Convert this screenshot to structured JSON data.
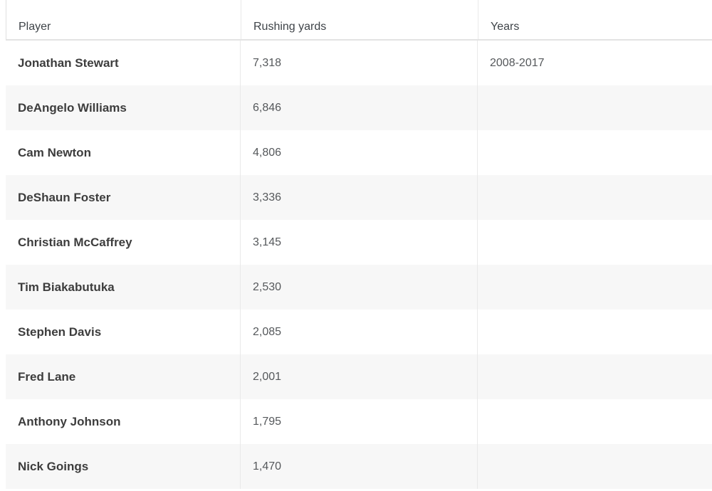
{
  "table": {
    "columns": [
      {
        "label": "Player"
      },
      {
        "label": "Rushing yards"
      },
      {
        "label": "Years"
      }
    ],
    "rows": [
      {
        "player": "Jonathan Stewart",
        "rushing_yards": "7,318",
        "years": "2008-2017"
      },
      {
        "player": "DeAngelo Williams",
        "rushing_yards": "6,846",
        "years": ""
      },
      {
        "player": "Cam Newton",
        "rushing_yards": "4,806",
        "years": ""
      },
      {
        "player": "DeShaun Foster",
        "rushing_yards": "3,336",
        "years": ""
      },
      {
        "player": "Christian McCaffrey",
        "rushing_yards": "3,145",
        "years": ""
      },
      {
        "player": "Tim Biakabutuka",
        "rushing_yards": "2,530",
        "years": ""
      },
      {
        "player": "Stephen Davis",
        "rushing_yards": "2,085",
        "years": ""
      },
      {
        "player": "Fred Lane",
        "rushing_yards": "2,001",
        "years": ""
      },
      {
        "player": "Anthony Johnson",
        "rushing_yards": "1,795",
        "years": ""
      },
      {
        "player": "Nick Goings",
        "rushing_yards": "1,470",
        "years": ""
      }
    ],
    "colors": {
      "background": "#ffffff",
      "stripe": "#f7f7f7",
      "divider": "#e9e9e9",
      "header_border": "#e3e3e3",
      "header_text": "#3e4348",
      "name_text": "#3d3d3d",
      "value_text": "#55585b"
    }
  },
  "chart_data": {
    "type": "table",
    "title": "",
    "columns": [
      "Player",
      "Rushing yards",
      "Years"
    ],
    "categories": [
      "Jonathan Stewart",
      "DeAngelo Williams",
      "Cam Newton",
      "DeShaun Foster",
      "Christian McCaffrey",
      "Tim Biakabutuka",
      "Stephen Davis",
      "Fred Lane",
      "Anthony Johnson",
      "Nick Goings"
    ],
    "values": [
      7318,
      6846,
      4806,
      3336,
      3145,
      2530,
      2085,
      2001,
      1795,
      1470
    ],
    "notes_column_values": [
      "2008-2017",
      "",
      "",
      "",
      "",
      "",
      "",
      "",
      "",
      ""
    ]
  }
}
